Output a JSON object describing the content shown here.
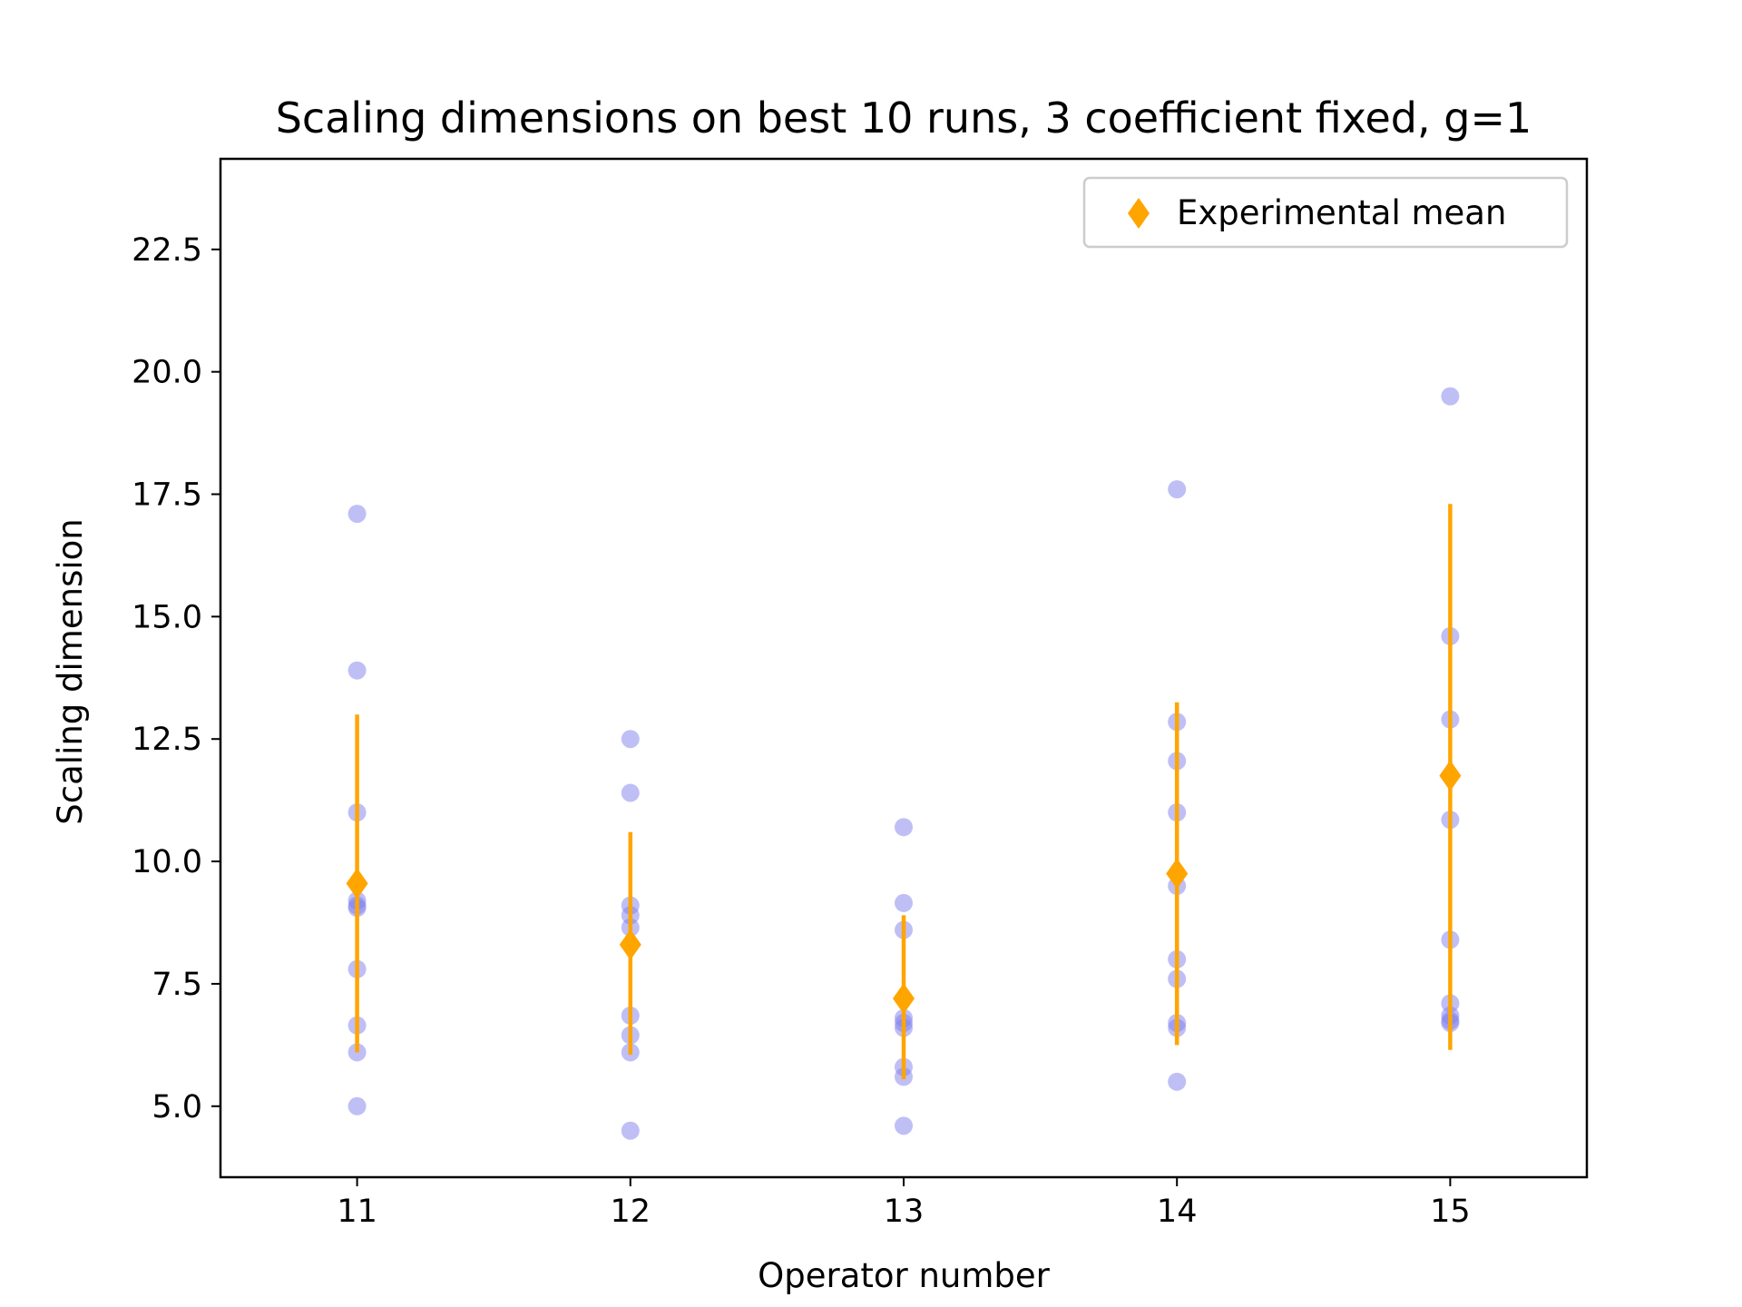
{
  "chart_data": {
    "type": "scatter",
    "title": "Scaling dimensions on best 10 runs, 3 coefficient fixed, g=1",
    "xlabel": "Operator number",
    "ylabel": "Scaling dimension",
    "xlim": [
      10.5,
      15.5
    ],
    "ylim": [
      3.55,
      24.35
    ],
    "x_ticks": [
      11,
      12,
      13,
      14,
      15
    ],
    "x_tick_labels": [
      "11",
      "12",
      "13",
      "14",
      "15"
    ],
    "y_ticks": [
      5.0,
      7.5,
      10.0,
      12.5,
      15.0,
      17.5,
      20.0,
      22.5
    ],
    "y_tick_labels": [
      "5.0",
      "7.5",
      "10.0",
      "12.5",
      "15.0",
      "17.5",
      "20.0",
      "22.5"
    ],
    "grid": false,
    "legend": {
      "entries": [
        "Experimental mean"
      ],
      "placement": "top-right"
    },
    "colors": {
      "runs": "#8080ee",
      "mean": "#ffa500"
    },
    "series": [
      {
        "kind": "runs",
        "points": [
          {
            "x": 11,
            "values": [
              17.1,
              13.9,
              11.0,
              9.2,
              9.1,
              9.05,
              7.8,
              6.65,
              6.1,
              5.0
            ]
          },
          {
            "x": 12,
            "values": [
              12.5,
              11.4,
              9.1,
              8.9,
              8.65,
              6.85,
              6.45,
              6.1,
              4.5
            ]
          },
          {
            "x": 13,
            "values": [
              10.7,
              9.15,
              8.6,
              6.8,
              6.7,
              6.6,
              5.8,
              5.6,
              4.6
            ]
          },
          {
            "x": 14,
            "values": [
              17.6,
              12.85,
              12.05,
              11.0,
              9.5,
              8.0,
              7.6,
              6.7,
              6.6,
              5.5
            ]
          },
          {
            "x": 15,
            "values": [
              19.5,
              14.6,
              12.9,
              10.85,
              8.4,
              7.1,
              6.85,
              6.75,
              6.7
            ]
          }
        ]
      },
      {
        "name": "Experimental mean",
        "kind": "mean",
        "x": [
          11,
          12,
          13,
          14,
          15
        ],
        "values": [
          9.55,
          8.3,
          7.2,
          9.75,
          11.75
        ],
        "error_low": [
          6.1,
          6.05,
          5.55,
          6.25,
          6.15
        ],
        "error_high": [
          13.0,
          10.6,
          8.9,
          13.25,
          17.3
        ]
      }
    ]
  }
}
